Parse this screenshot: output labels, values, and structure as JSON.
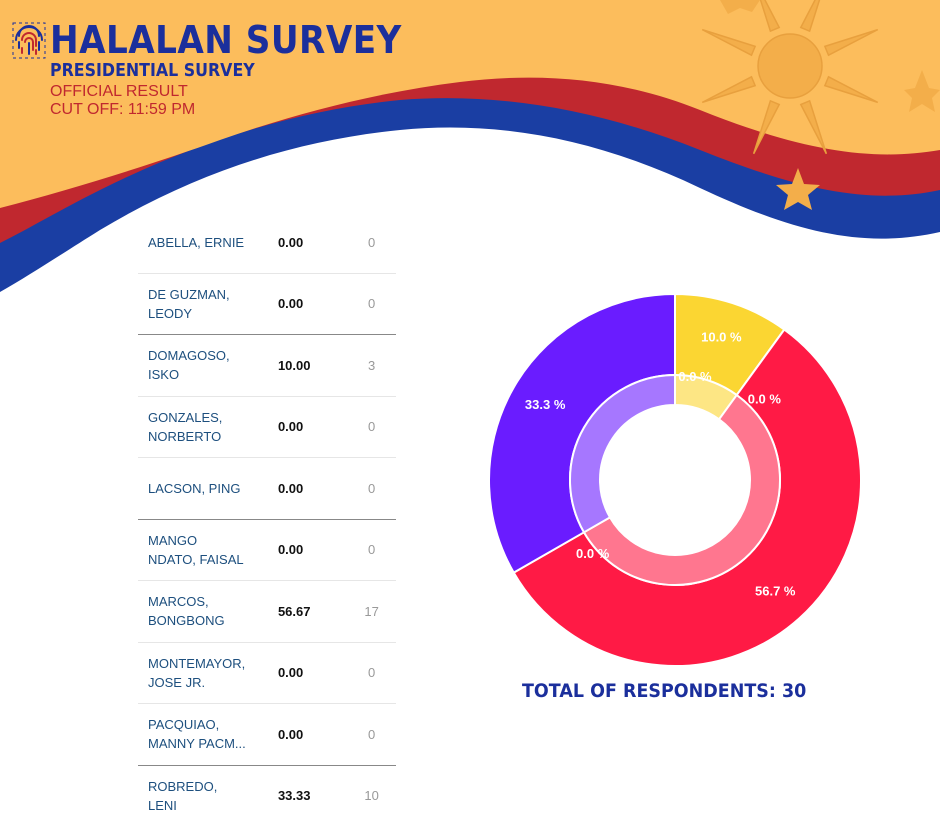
{
  "header": {
    "title": "HALALAN SURVEY",
    "subtitle": "PRESIDENTIAL SURVEY",
    "status_line1": "OFFICIAL RESULT",
    "status_line2": "CUT OFF: 11:59 PM"
  },
  "colors": {
    "yellow_bg": "#fcbd5c",
    "red_band": "#c0282f",
    "blue_band": "#1a3ea3",
    "title_blue": "#1b2f9c"
  },
  "candidates": [
    {
      "name_line1": "ABELLA, ERNIE",
      "name_line2": "",
      "percent": "0.00",
      "count": "0"
    },
    {
      "name_line1": "DE GUZMAN,",
      "name_line2": "LEODY",
      "percent": "0.00",
      "count": "0"
    },
    {
      "name_line1": "DOMAGOSO,",
      "name_line2": "ISKO",
      "percent": "10.00",
      "count": "3"
    },
    {
      "name_line1": "GONZALES,",
      "name_line2": "NORBERTO",
      "percent": "0.00",
      "count": "0"
    },
    {
      "name_line1": "LACSON, PING",
      "name_line2": "",
      "percent": "0.00",
      "count": "0"
    },
    {
      "name_line1": "MANGO",
      "name_line2": "NDATO, FAISAL",
      "percent": "0.00",
      "count": "0"
    },
    {
      "name_line1": "MARCOS,",
      "name_line2": "BONGBONG",
      "percent": "56.67",
      "count": "17"
    },
    {
      "name_line1": "MONTEMAYOR,",
      "name_line2": "JOSE JR.",
      "percent": "0.00",
      "count": "0"
    },
    {
      "name_line1": "PACQUIAO,",
      "name_line2": "MANNY PACM...",
      "percent": "0.00",
      "count": "0"
    },
    {
      "name_line1": "ROBREDO,",
      "name_line2": "LENI",
      "percent": "33.33",
      "count": "10"
    }
  ],
  "chart_data": {
    "type": "pie",
    "style": "donut",
    "slices": [
      {
        "label": "10.0 %",
        "value": 10.0,
        "color": "#fbd632"
      },
      {
        "label": "0.0 %",
        "value": 0.0,
        "color": "#fbd632"
      },
      {
        "label": "56.7 %",
        "value": 56.7,
        "color": "#ff1a45"
      },
      {
        "label": "0.0 %",
        "value": 0.0,
        "color": "#ff1a45"
      },
      {
        "label": "33.3 %",
        "value": 33.3,
        "color": "#6a1cff"
      },
      {
        "label": "0.0 %",
        "value": 0.0,
        "color": "#6a1cff"
      }
    ],
    "total_label": "TOTAL OF RESPONDENTS: 30",
    "total": 30
  }
}
